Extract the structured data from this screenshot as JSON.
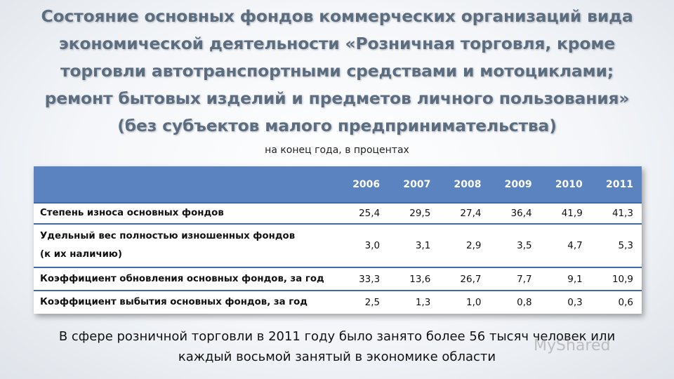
{
  "title": {
    "line1": "Состояние основных фондов коммерческих организаций вида",
    "line2": "экономической деятельности «Розничная торговля, кроме",
    "line3": "торговли автотранспортными средствами и мотоциклами;",
    "line4": "ремонт бытовых изделий и предметов личного пользования»",
    "line5": "(без субъектов малого предпринимательства)"
  },
  "subtitle": "на конец года, в процентах",
  "table": {
    "years": [
      "2006",
      "2007",
      "2008",
      "2009",
      "2010",
      "2011"
    ],
    "rows": [
      {
        "label": "Степень износа основных фондов",
        "values": [
          "25,4",
          "29,5",
          "27,4",
          "36,4",
          "41,9",
          "41,3"
        ]
      },
      {
        "label": "Удельный вес полностью изношенных фондов (к их наличию)",
        "label_line1": "Удельный вес полностью изношенных фондов",
        "label_line2": "(к их наличию)",
        "values": [
          "3,0",
          "3,1",
          "2,9",
          "3,5",
          "4,7",
          "5,3"
        ]
      },
      {
        "label": "Коэффициент обновления основных фондов, за год",
        "values": [
          "33,3",
          "13,6",
          "26,7",
          "7,7",
          "9,1",
          "10,9"
        ]
      },
      {
        "label": "Коэффициент выбытия основных фондов, за год",
        "values": [
          "2,5",
          "1,3",
          "1,0",
          "0,8",
          "0,3",
          "0,6"
        ]
      }
    ]
  },
  "note": {
    "line1": "В сфере розничной торговли в 2011 году было занято более 56 тысяч человек или",
    "line2": "каждый восьмой занятый в экономике области"
  },
  "watermark": "MyShared"
}
